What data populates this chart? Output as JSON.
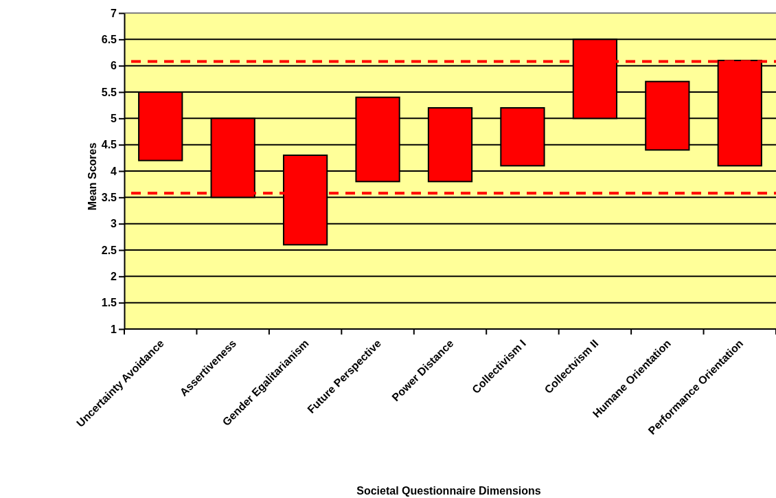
{
  "chart_data": {
    "type": "bar",
    "xlabel": "Societal Questionnaire Dimensions",
    "ylabel": "Mean Scores",
    "categories": [
      "Uncertainty Avoidance",
      "Assertiveness",
      "Gender Egalitarianism",
      "Future Perspective",
      "Power Distance",
      "Collectivism I",
      "Collectvism II",
      "Humane Orientation",
      "Performance Orientation"
    ],
    "base": [
      4.2,
      3.5,
      2.6,
      3.8,
      3.8,
      4.1,
      5.0,
      4.4,
      4.1
    ],
    "values": [
      1.3,
      1.5,
      1.7,
      1.6,
      1.4,
      1.1,
      1.5,
      1.3,
      2.0
    ],
    "color": "#ff0000",
    "ylim": [
      1,
      7
    ],
    "yticks": [
      1,
      1.5,
      2,
      2.5,
      3,
      3.5,
      4,
      4.5,
      5,
      5.5,
      6,
      6.5,
      7
    ],
    "grid": "y",
    "ref_lines": [
      {
        "axis": "y",
        "value": 6.08,
        "color": "#ff0000",
        "line_style": "dashed"
      },
      {
        "axis": "y",
        "value": 3.58,
        "color": "#ff0000",
        "line_style": "dashed"
      }
    ]
  }
}
